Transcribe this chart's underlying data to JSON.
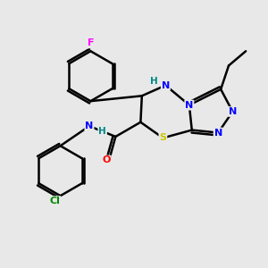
{
  "background_color": "#e8e8e8",
  "atom_colors": {
    "C": "#000000",
    "N": "#0000ff",
    "O": "#ff0000",
    "S": "#c8c800",
    "F": "#ff00ff",
    "Cl": "#008800",
    "H": "#008888"
  },
  "bond_color": "#000000",
  "lw": 1.8
}
